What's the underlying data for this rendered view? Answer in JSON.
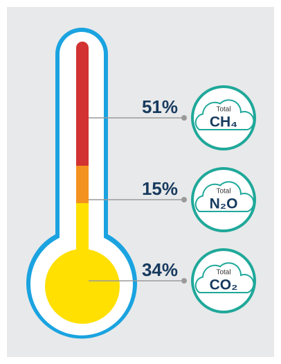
{
  "chart_data": {
    "type": "thermometer",
    "categories": [
      "CH₄",
      "N₂O",
      "CO₂"
    ],
    "values": [
      51,
      15,
      34
    ],
    "value_labels": [
      "51%",
      "15%",
      "34%"
    ],
    "colors": [
      "#d23232",
      "#f39220",
      "#ffe000"
    ],
    "annotation": "Total",
    "ylim": [
      0,
      100
    ]
  }
}
